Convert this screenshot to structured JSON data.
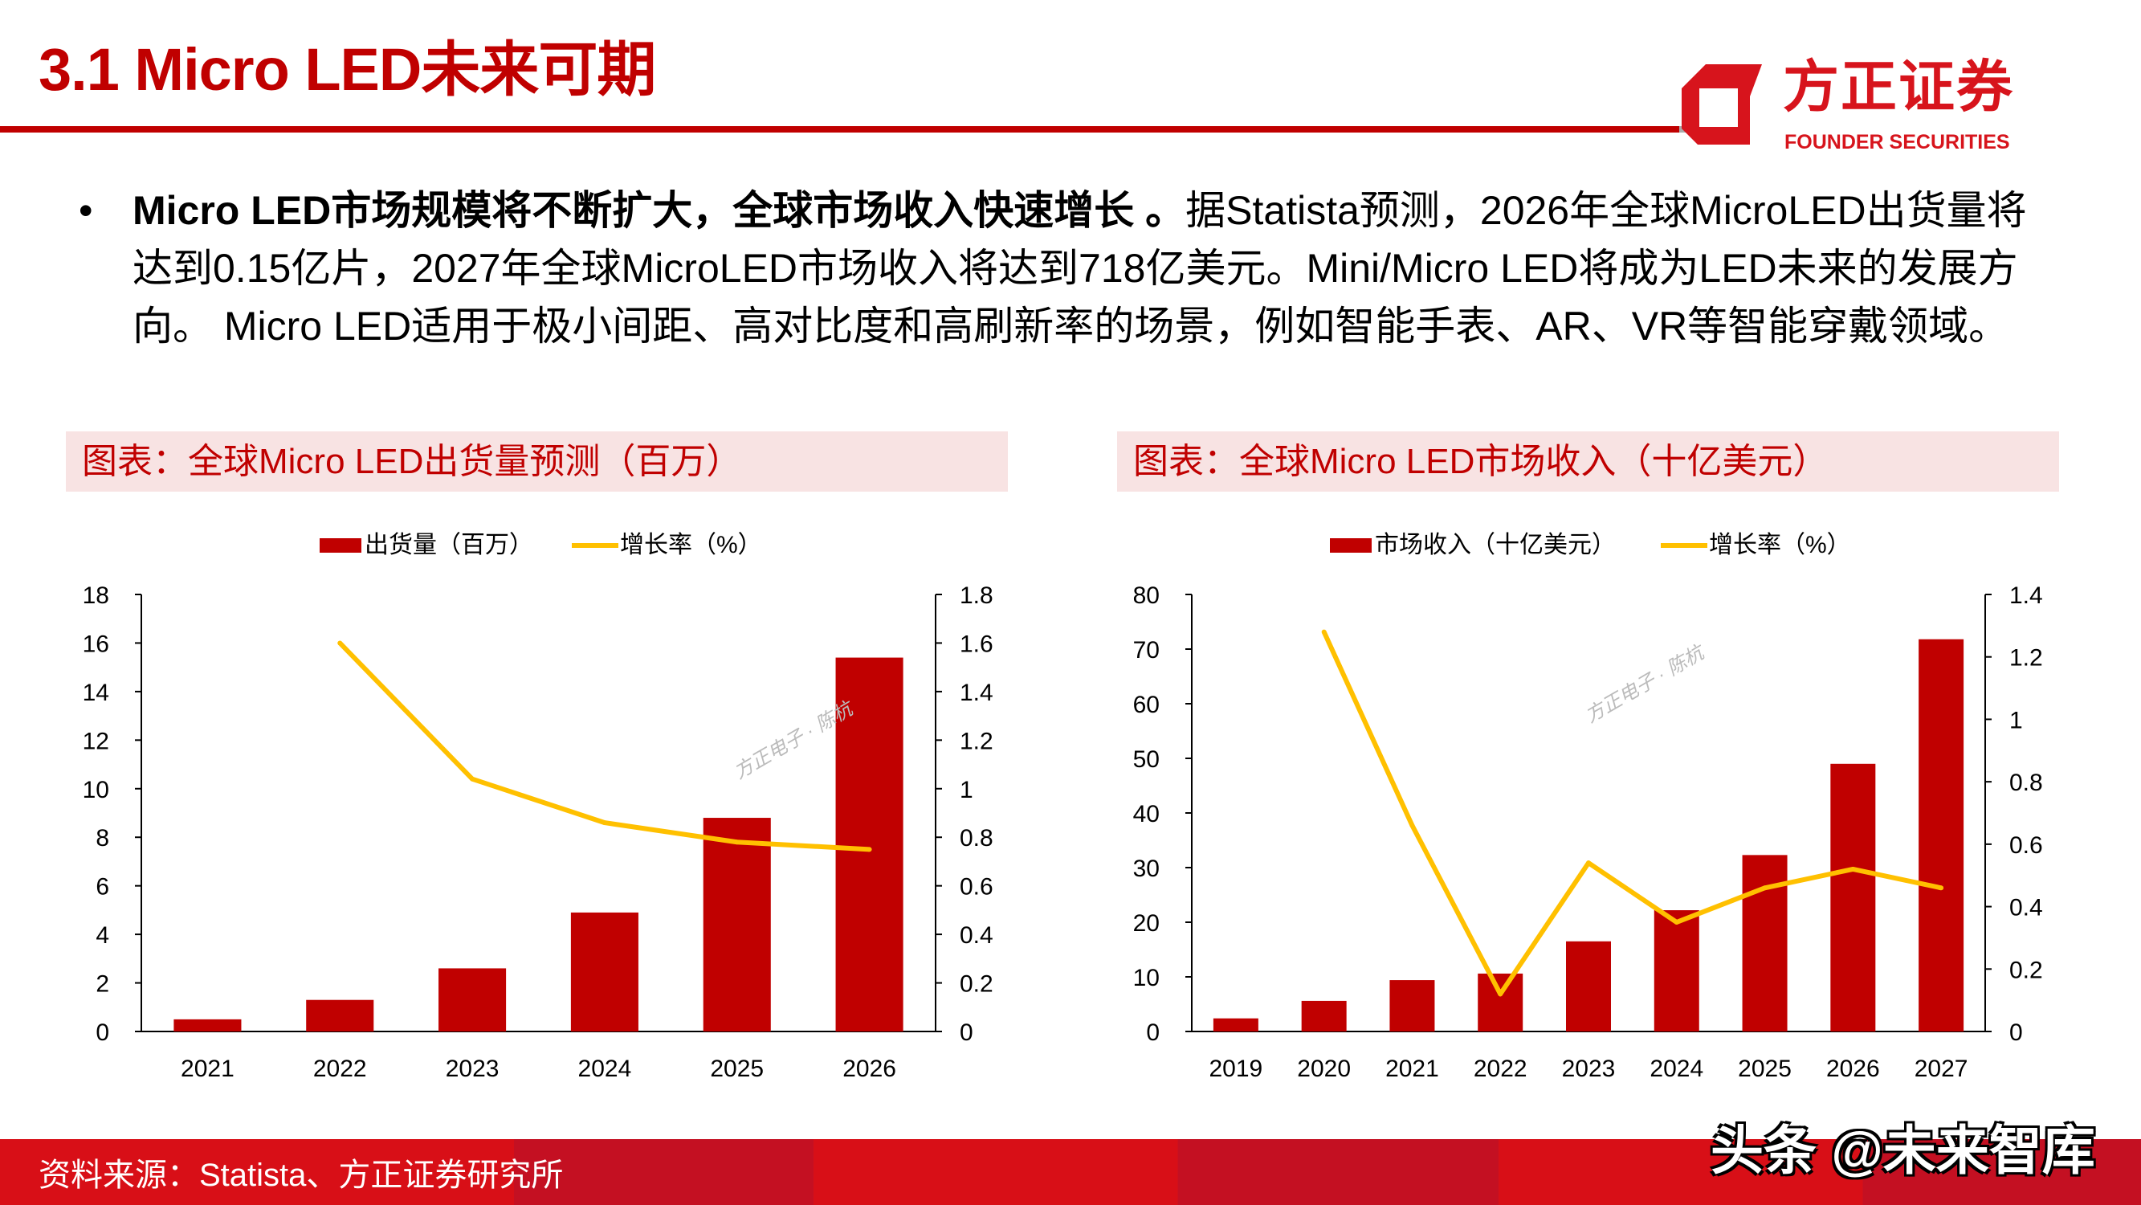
{
  "header": {
    "title": "3.1 Micro LED未来可期"
  },
  "logo": {
    "cn": "方正证券",
    "en": "FOUNDER SECURITIES",
    "color": "#d7141c"
  },
  "body": {
    "bullet": "•",
    "bold": "Micro LED市场规模将不断扩大，全球市场收入快速增长 。",
    "text": "据Statista预测，2026年全球MicroLED出货量将达到0.15亿片，2027年全球MicroLED市场收入将达到718亿美元。Mini/Micro LED将成为LED未来的发展方向。 Micro LED适用于极小间距、高对比度和高刷新率的场景，例如智能手表、AR、VR等智能穿戴领域。"
  },
  "chart_data": [
    {
      "type": "bar+line",
      "caption": "图表：全球Micro LED出货量预测（百万）",
      "categories": [
        "2021",
        "2022",
        "2023",
        "2024",
        "2025",
        "2026"
      ],
      "series": [
        {
          "name": "出货量（百万）",
          "type": "bar",
          "axis": "left",
          "color": "#c00000",
          "values": [
            0.5,
            1.3,
            2.6,
            4.9,
            8.8,
            15.4
          ]
        },
        {
          "name": "增长率（%）",
          "type": "line",
          "axis": "right",
          "color": "#ffc000",
          "values": [
            null,
            1.6,
            1.04,
            0.86,
            0.78,
            0.75
          ]
        }
      ],
      "y_left": {
        "range": [
          0,
          18
        ],
        "ticks": [
          "0",
          "2",
          "4",
          "6",
          "8",
          "10",
          "12",
          "14",
          "16",
          "18"
        ]
      },
      "y_right": {
        "range": [
          0,
          1.8
        ],
        "ticks": [
          "0",
          "0.2",
          "0.4",
          "0.6",
          "0.8",
          "1",
          "1.2",
          "1.4",
          "1.6",
          "1.8"
        ]
      },
      "legend": "top",
      "grid": false,
      "watermark": "方正电子 · 陈杭"
    },
    {
      "type": "bar+line",
      "caption": "图表：全球Micro LED市场收入（十亿美元）",
      "categories": [
        "2019",
        "2020",
        "2021",
        "2022",
        "2023",
        "2024",
        "2025",
        "2026",
        "2027"
      ],
      "series": [
        {
          "name": "市场收入（十亿美元）",
          "type": "bar",
          "axis": "left",
          "color": "#c00000",
          "values": [
            2.4,
            5.6,
            9.4,
            10.6,
            16.5,
            22.2,
            32.3,
            49.0,
            71.8
          ]
        },
        {
          "name": "增长率（%）",
          "type": "line",
          "axis": "right",
          "color": "#ffc000",
          "values": [
            null,
            1.28,
            0.66,
            0.12,
            0.54,
            0.35,
            0.46,
            0.52,
            0.46
          ]
        }
      ],
      "y_left": {
        "range": [
          0,
          80
        ],
        "ticks": [
          "0",
          "10",
          "20",
          "30",
          "40",
          "50",
          "60",
          "70",
          "80"
        ]
      },
      "y_right": {
        "range": [
          0,
          1.4
        ],
        "ticks": [
          "0",
          "0.2",
          "0.4",
          "0.6",
          "0.8",
          "1",
          "1.2",
          "1.4"
        ]
      },
      "legend": "top",
      "grid": false,
      "watermark": "方正电子 · 陈杭"
    }
  ],
  "footer": {
    "source": "资料来源：Statista、方正证券研究所",
    "watermark": "头条 @未来智库"
  }
}
